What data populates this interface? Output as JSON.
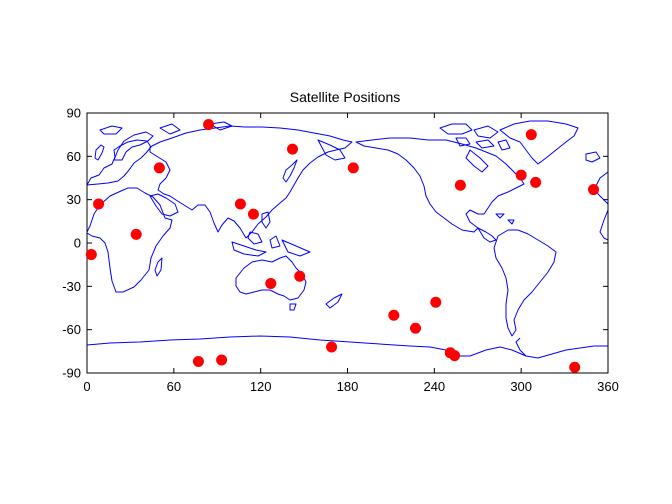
{
  "chart_data": {
    "type": "scatter",
    "title": "Satellite Positions",
    "xlabel": "",
    "ylabel": "",
    "xlim": [
      0,
      360
    ],
    "ylim": [
      -90,
      90
    ],
    "xticks": [
      0,
      60,
      120,
      180,
      240,
      300,
      360
    ],
    "yticks": [
      -90,
      -60,
      -30,
      0,
      30,
      60,
      90
    ],
    "grid": false,
    "legend": "none",
    "background_layer": "world coastline map",
    "colors": {
      "marker": "#ff0000",
      "coastline": "#0000ff",
      "axes": "#000000"
    },
    "series": [
      {
        "points": [
          [
            3,
            -8
          ],
          [
            8,
            27
          ],
          [
            34,
            6
          ],
          [
            50,
            52
          ],
          [
            84,
            82
          ],
          [
            77,
            -82
          ],
          [
            93,
            -81
          ],
          [
            106,
            27
          ],
          [
            115,
            20
          ],
          [
            127,
            -28
          ],
          [
            142,
            65
          ],
          [
            147,
            -23
          ],
          [
            169,
            -72
          ],
          [
            184,
            52
          ],
          [
            212,
            -50
          ],
          [
            227,
            -59
          ],
          [
            241,
            -41
          ],
          [
            251,
            -76
          ],
          [
            254,
            -78
          ],
          [
            258,
            40
          ],
          [
            300,
            47
          ],
          [
            307,
            75
          ],
          [
            310,
            42
          ],
          [
            337,
            -86
          ],
          [
            350,
            37
          ]
        ]
      }
    ]
  }
}
